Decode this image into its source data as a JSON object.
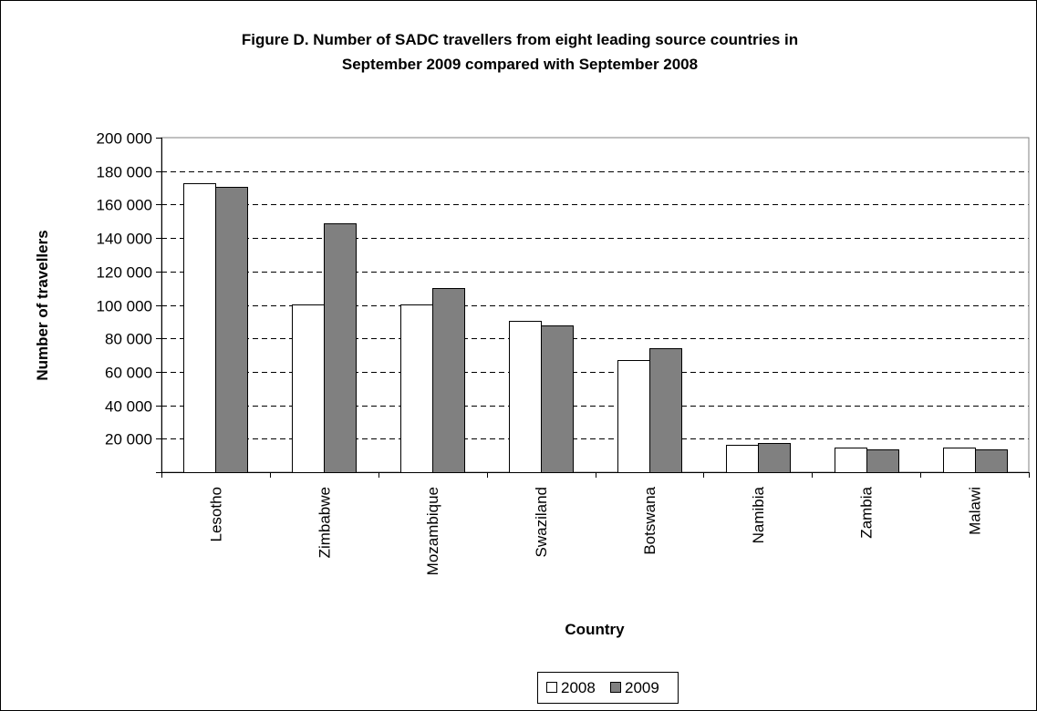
{
  "chart_data": {
    "type": "bar",
    "title_line1": "Figure D. Number of SADC travellers from eight leading source countries in",
    "title_line2": "September 2009 compared with September 2008",
    "xlabel": "Country",
    "ylabel": "Number of travellers",
    "categories": [
      "Lesotho",
      "Zimbabwe",
      "Mozambique",
      "Swaziland",
      "Botswana",
      "Namibia",
      "Zambia",
      "Malawi"
    ],
    "series": [
      {
        "name": "2008",
        "color": "#ffffff",
        "values": [
          173000,
          100500,
          100500,
          90500,
          67000,
          16500,
          14500,
          14500
        ]
      },
      {
        "name": "2009",
        "color": "#808080",
        "values": [
          170500,
          149000,
          110000,
          87500,
          74000,
          17500,
          13500,
          13500
        ]
      }
    ],
    "ylim": [
      0,
      200000
    ],
    "ytick_values": [
      20000,
      40000,
      60000,
      80000,
      100000,
      120000,
      140000,
      160000,
      180000,
      200000
    ],
    "ytick_labels": [
      "20 000",
      "40 000",
      "60 000",
      "80 000",
      "100 000",
      "120 000",
      "140 000",
      "160 000",
      "180 000",
      "200 000"
    ],
    "grid": "horizontal dashed",
    "legend_position": "bottom"
  }
}
